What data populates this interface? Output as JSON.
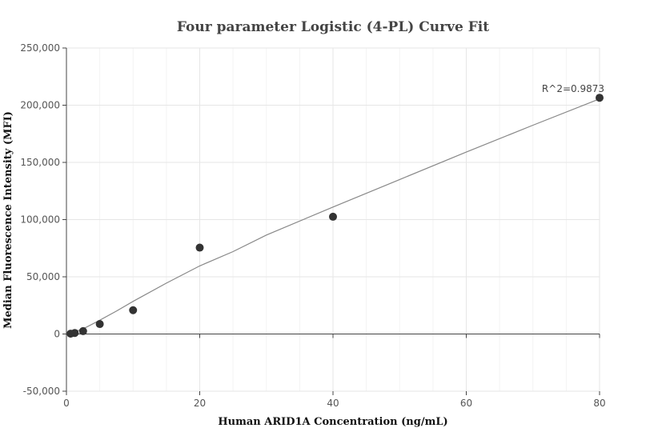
{
  "chart_data": {
    "type": "scatter",
    "title": "Four parameter Logistic (4-PL) Curve Fit",
    "xlabel": "Human ARID1A Concentration (ng/mL)",
    "ylabel": "Median Fluorescence Intensity (MFI)",
    "xlim": [
      0,
      80
    ],
    "ylim": [
      -50000,
      250000
    ],
    "x_ticks": [
      0,
      20,
      40,
      60,
      80
    ],
    "x_tick_labels": [
      "0",
      "20",
      "40",
      "60",
      "80"
    ],
    "y_ticks": [
      -50000,
      0,
      50000,
      100000,
      150000,
      200000,
      250000
    ],
    "y_tick_labels": [
      "-50,000",
      "0",
      "50,000",
      "100,000",
      "150,000",
      "200,000",
      "250,000"
    ],
    "grid": true,
    "series": [
      {
        "points": [
          {
            "x": 0.625,
            "y": 300
          },
          {
            "x": 1.25,
            "y": 900
          },
          {
            "x": 2.5,
            "y": 2500
          },
          {
            "x": 5,
            "y": 8700
          },
          {
            "x": 10,
            "y": 20800
          },
          {
            "x": 20,
            "y": 75500
          },
          {
            "x": 40,
            "y": 102500
          },
          {
            "x": 80,
            "y": 206500
          }
        ],
        "color": "#333333"
      }
    ],
    "fit_curve": {
      "x": [
        0,
        1,
        2,
        3,
        5,
        7.5,
        10,
        15,
        20,
        25,
        30,
        40,
        50,
        60,
        70,
        80
      ],
      "y": [
        0,
        1500,
        3500,
        6000,
        12000,
        20000,
        28500,
        44500,
        59500,
        72000,
        86500,
        111000,
        135000,
        159000,
        182500,
        205500
      ],
      "color": "#888888"
    },
    "annotations": [
      {
        "text": "R^2=0.9873",
        "x": 80,
        "y": 206500
      }
    ]
  }
}
